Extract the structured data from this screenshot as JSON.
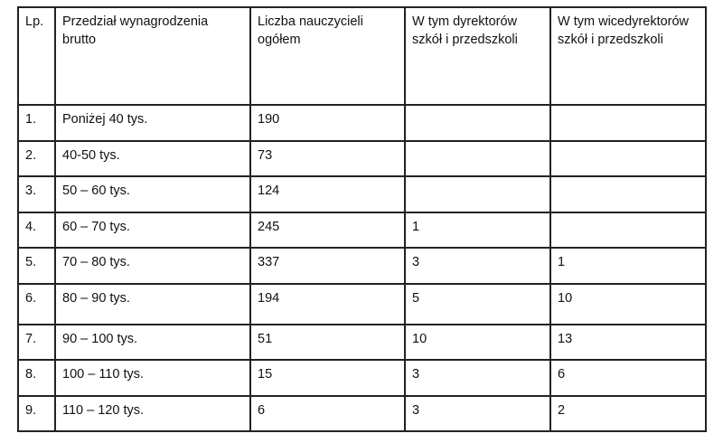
{
  "table": {
    "headers": [
      "Lp.",
      "Przedział wynagrodzenia brutto",
      "Liczba nauczycieli ogółem",
      "W tym dyrektorów szkół i przedszkoli",
      "W tym wicedyrektorów szkół i przedszkoli"
    ],
    "rows": [
      [
        "1.",
        "Poniżej 40 tys.",
        "190",
        "",
        ""
      ],
      [
        "2.",
        "40-50 tys.",
        "73",
        "",
        ""
      ],
      [
        "3.",
        "50 – 60 tys.",
        "124",
        "",
        ""
      ],
      [
        "4.",
        "60 – 70 tys.",
        "245",
        "1",
        ""
      ],
      [
        "5.",
        "70 – 80 tys.",
        "337",
        "3",
        "1"
      ],
      [
        "6.",
        "80 – 90 tys.",
        "194",
        "5",
        "10"
      ],
      [
        "7.",
        "90 – 100 tys.",
        "51",
        "10",
        "13"
      ],
      [
        "8.",
        "100 – 110 tys.",
        "15",
        "3",
        "6"
      ],
      [
        "9.",
        "110 – 120 tys.",
        "6",
        "3",
        "2"
      ]
    ]
  }
}
